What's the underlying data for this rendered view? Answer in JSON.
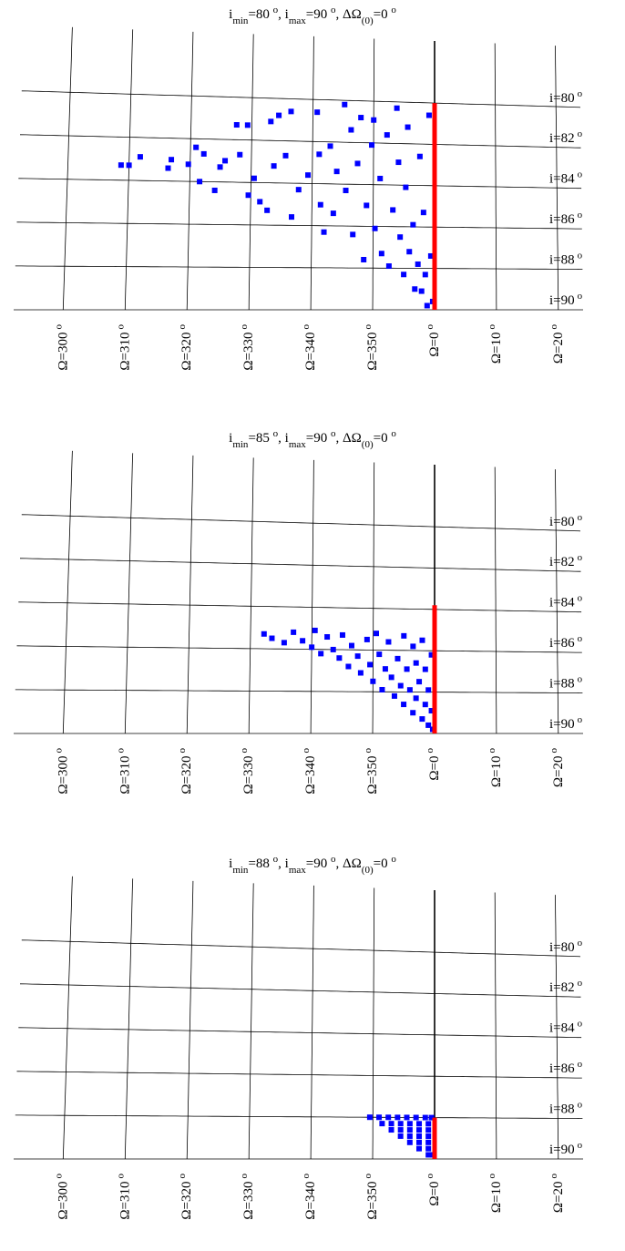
{
  "chart_data": [
    {
      "type": "scatter",
      "title": [
        {
          "text": "i"
        },
        {
          "text": "min",
          "style": "sub"
        },
        {
          "text": "=80 "
        },
        {
          "text": "o",
          "style": "sup"
        },
        {
          "text": ", i"
        },
        {
          "text": "max",
          "style": "sub"
        },
        {
          "text": "=90 "
        },
        {
          "text": "o",
          "style": "sup"
        },
        {
          "text": ", ΔΩ"
        },
        {
          "text": "(0)",
          "style": "sub"
        },
        {
          "text": "=0 "
        },
        {
          "text": "o",
          "style": "sup"
        }
      ],
      "degree_mark": "o",
      "xlim": [
        -68,
        24
      ],
      "ylim": [
        77,
        90
      ],
      "xticks": [
        {
          "value": -60,
          "label": "Ω=300"
        },
        {
          "value": -50,
          "label": "Ω=310"
        },
        {
          "value": -40,
          "label": "Ω=320"
        },
        {
          "value": -30,
          "label": "Ω=330"
        },
        {
          "value": -20,
          "label": "Ω=340"
        },
        {
          "value": -10,
          "label": "Ω=350"
        },
        {
          "value": 0,
          "label": "Ω=0"
        },
        {
          "value": 10,
          "label": "Ω=10"
        },
        {
          "value": 20,
          "label": "Ω=20"
        }
      ],
      "yticks": [
        {
          "value": 80,
          "label": "i=80"
        },
        {
          "value": 82,
          "label": "i=82"
        },
        {
          "value": 84,
          "label": "i=84"
        },
        {
          "value": 86,
          "label": "i=86"
        },
        {
          "value": 88,
          "label": "i=88"
        },
        {
          "value": 90,
          "label": "i=90"
        }
      ],
      "series": [
        {
          "color": "#0000ff",
          "style": "squares",
          "x": [
            -51.3,
            -50.0,
            -48.2,
            -43.6,
            -43.1,
            -40.3,
            -39.1,
            -38.4,
            -37.8,
            -35.9,
            -35.1,
            -34.3,
            -32.5,
            -31.9,
            -30.7,
            -30.4,
            -29.5,
            -28.5,
            -27.3,
            -26.9,
            -26.3,
            -25.6,
            -24.4,
            -23.6,
            -23.3,
            -22.2,
            -20.7,
            -19.3,
            -18.9,
            -18.6,
            -18.0,
            -17.1,
            -16.5,
            -16.0,
            -14.8,
            -14.5,
            -13.7,
            -13.3,
            -12.6,
            -12.1,
            -11.5,
            -11.1,
            -10.3,
            -10.0,
            -9.7,
            -8.9,
            -8.6,
            -7.8,
            -7.4,
            -6.8,
            -6.2,
            -5.9,
            -5.6,
            -5.0,
            -4.7,
            -4.4,
            -4.1,
            -3.5,
            -3.2,
            -2.7,
            -2.4,
            -2.1,
            -1.8,
            -1.5,
            -1.2,
            -0.9,
            -0.6,
            -0.3
          ],
          "values": [
            83.3,
            83.3,
            82.9,
            83.4,
            83.0,
            83.2,
            82.4,
            84.0,
            82.7,
            84.4,
            83.3,
            83.0,
            81.3,
            82.7,
            81.3,
            84.6,
            83.8,
            84.9,
            85.3,
            81.1,
            83.2,
            80.8,
            82.7,
            80.6,
            85.6,
            84.3,
            83.6,
            80.6,
            82.6,
            85.0,
            86.3,
            82.2,
            85.4,
            83.4,
            80.2,
            84.3,
            81.4,
            86.4,
            83.0,
            80.8,
            87.6,
            85.0,
            82.1,
            80.9,
            86.1,
            83.7,
            87.3,
            81.6,
            87.9,
            85.2,
            80.3,
            82.9,
            86.5,
            88.3,
            84.1,
            81.2,
            87.2,
            85.9,
            89.0,
            87.8,
            82.6,
            89.1,
            85.3,
            88.3,
            89.8,
            80.6,
            87.4,
            89.6
          ]
        },
        {
          "color": "#ff0000",
          "style": "line",
          "x": [
            0,
            0
          ],
          "values": [
            90,
            80
          ]
        }
      ]
    },
    {
      "type": "scatter",
      "title": [
        {
          "text": "i"
        },
        {
          "text": "min",
          "style": "sub"
        },
        {
          "text": "=85 "
        },
        {
          "text": "o",
          "style": "sup"
        },
        {
          "text": ", i"
        },
        {
          "text": "max",
          "style": "sub"
        },
        {
          "text": "=90 "
        },
        {
          "text": "o",
          "style": "sup"
        },
        {
          "text": ", ΔΩ"
        },
        {
          "text": "(0)",
          "style": "sub"
        },
        {
          "text": "=0 "
        },
        {
          "text": "o",
          "style": "sup"
        }
      ],
      "degree_mark": "o",
      "xlim": [
        -68,
        24
      ],
      "ylim": [
        77,
        90
      ],
      "xticks": [
        {
          "value": -60,
          "label": "Ω=300"
        },
        {
          "value": -50,
          "label": "Ω=310"
        },
        {
          "value": -40,
          "label": "Ω=320"
        },
        {
          "value": -30,
          "label": "Ω=330"
        },
        {
          "value": -20,
          "label": "Ω=340"
        },
        {
          "value": -10,
          "label": "Ω=350"
        },
        {
          "value": 0,
          "label": "Ω=0"
        },
        {
          "value": 10,
          "label": "Ω=10"
        },
        {
          "value": 20,
          "label": "Ω=20"
        }
      ],
      "yticks": [
        {
          "value": 80,
          "label": "i=80"
        },
        {
          "value": 82,
          "label": "i=82"
        },
        {
          "value": 84,
          "label": "i=84"
        },
        {
          "value": 86,
          "label": "i=86"
        },
        {
          "value": 88,
          "label": "i=88"
        },
        {
          "value": 90,
          "label": "i=90"
        }
      ],
      "series": [
        {
          "color": "#0000ff",
          "style": "squares",
          "x": [
            -27.8,
            -26.5,
            -24.5,
            -23,
            -21.5,
            -20,
            -19.5,
            -18.5,
            -17.5,
            -16.5,
            -15.5,
            -15,
            -14,
            -13.5,
            -12.5,
            -12,
            -11,
            -10.5,
            -10,
            -9.5,
            -9,
            -8.5,
            -8,
            -7.5,
            -7,
            -6.5,
            -6,
            -5.5,
            -5,
            -5,
            -4.5,
            -4,
            -3.5,
            -3.5,
            -3,
            -3,
            -2.5,
            -2,
            -2,
            -1.5,
            -1.5,
            -1,
            -1,
            -0.5,
            -0.5,
            -0.3
          ],
          "values": [
            85.3,
            85.5,
            85.7,
            85.2,
            85.6,
            85.9,
            85.1,
            86.2,
            85.4,
            86.0,
            86.4,
            85.3,
            86.8,
            85.8,
            86.3,
            87.1,
            85.5,
            86.7,
            87.5,
            85.2,
            86.2,
            87.9,
            86.9,
            85.6,
            87.3,
            88.2,
            86.4,
            87.7,
            85.3,
            88.6,
            86.9,
            87.9,
            85.8,
            89.0,
            86.6,
            88.3,
            87.5,
            85.5,
            89.3,
            86.9,
            88.6,
            87.9,
            89.6,
            86.2,
            88.9,
            89.8
          ]
        },
        {
          "color": "#ff0000",
          "style": "line",
          "x": [
            0,
            0
          ],
          "values": [
            90,
            83.8
          ]
        }
      ]
    },
    {
      "type": "scatter",
      "title": [
        {
          "text": "i"
        },
        {
          "text": "min",
          "style": "sub"
        },
        {
          "text": "=88 "
        },
        {
          "text": "o",
          "style": "sup"
        },
        {
          "text": ", i"
        },
        {
          "text": "max",
          "style": "sub"
        },
        {
          "text": "=90 "
        },
        {
          "text": "o",
          "style": "sup"
        },
        {
          "text": ", ΔΩ"
        },
        {
          "text": "(0)",
          "style": "sub"
        },
        {
          "text": "=0 "
        },
        {
          "text": "o",
          "style": "sup"
        }
      ],
      "degree_mark": "o",
      "xlim": [
        -68,
        24
      ],
      "ylim": [
        77,
        90
      ],
      "xticks": [
        {
          "value": -60,
          "label": "Ω=300"
        },
        {
          "value": -50,
          "label": "Ω=310"
        },
        {
          "value": -40,
          "label": "Ω=320"
        },
        {
          "value": -30,
          "label": "Ω=330"
        },
        {
          "value": -20,
          "label": "Ω=340"
        },
        {
          "value": -10,
          "label": "Ω=350"
        },
        {
          "value": 0,
          "label": "Ω=0"
        },
        {
          "value": 10,
          "label": "Ω=10"
        },
        {
          "value": 20,
          "label": "Ω=20"
        }
      ],
      "yticks": [
        {
          "value": 80,
          "label": "i=80"
        },
        {
          "value": 82,
          "label": "i=82"
        },
        {
          "value": 84,
          "label": "i=84"
        },
        {
          "value": 86,
          "label": "i=86"
        },
        {
          "value": 88,
          "label": "i=88"
        },
        {
          "value": 90,
          "label": "i=90"
        }
      ],
      "series": [
        {
          "color": "#0000ff",
          "style": "squares",
          "x": [
            -10.5,
            -9,
            -7.5,
            -6,
            -4.5,
            -3,
            -1.5,
            -0.5,
            -8.5,
            -7,
            -5.5,
            -4,
            -2.5,
            -1,
            -7,
            -5.5,
            -4,
            -2.5,
            -1,
            -5.5,
            -4,
            -2.5,
            -1,
            -4,
            -2.5,
            -1,
            -2.5,
            -1,
            -1,
            -0.3
          ],
          "values": [
            88.0,
            88.0,
            88.0,
            88.0,
            88.0,
            88.0,
            88.0,
            88.0,
            88.3,
            88.3,
            88.3,
            88.3,
            88.3,
            88.3,
            88.6,
            88.6,
            88.6,
            88.6,
            88.6,
            88.9,
            88.9,
            88.9,
            88.9,
            89.2,
            89.2,
            89.2,
            89.5,
            89.5,
            89.8,
            89.8
          ]
        },
        {
          "color": "#ff0000",
          "style": "line",
          "x": [
            0,
            0
          ],
          "values": [
            90,
            88
          ]
        }
      ]
    }
  ]
}
